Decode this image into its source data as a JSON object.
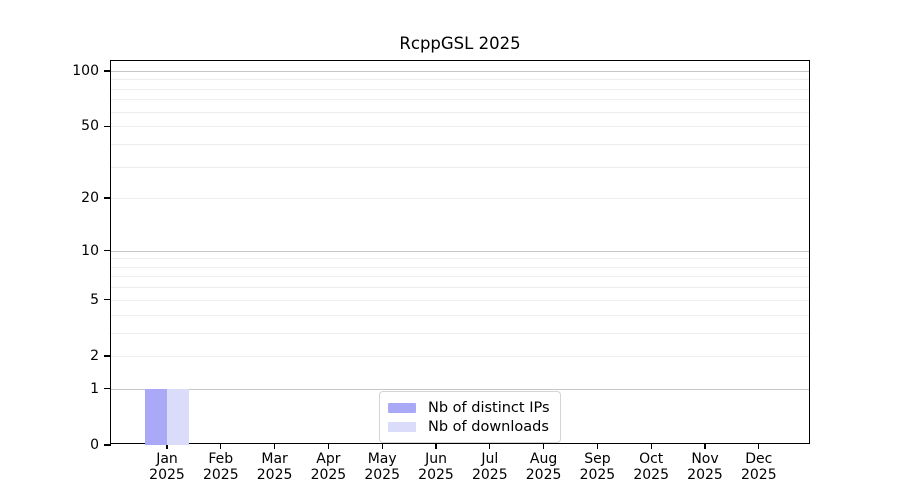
{
  "chart_data": {
    "type": "bar",
    "title": "RcppGSL 2025",
    "categories": [
      "Jan",
      "Feb",
      "Mar",
      "Apr",
      "May",
      "Jun",
      "Jul",
      "Aug",
      "Sep",
      "Oct",
      "Nov",
      "Dec"
    ],
    "x_tick_second_line": "2025",
    "series": [
      {
        "name": "Nb of distinct IPs",
        "color": "#a9a9f7",
        "values": [
          1,
          0,
          0,
          0,
          0,
          0,
          0,
          0,
          0,
          0,
          0,
          0
        ]
      },
      {
        "name": "Nb of downloads",
        "color": "#dbdbfa",
        "values": [
          1,
          0,
          0,
          0,
          0,
          0,
          0,
          0,
          0,
          0,
          0,
          0
        ]
      }
    ],
    "yscale": "log1p",
    "ylim": [
      0,
      113
    ],
    "ytick_labels": [
      0,
      1,
      2,
      5,
      10,
      20,
      50,
      100
    ],
    "grid_major_values": [
      1,
      10,
      100
    ],
    "grid_minor_values": [
      2,
      3,
      4,
      5,
      6,
      7,
      8,
      9,
      20,
      30,
      40,
      50,
      60,
      70,
      80,
      90
    ],
    "grid": "horizontal",
    "legend_position": "bottom-center",
    "colors": {
      "grid_major": "#c6c6c6",
      "grid_minor": "#ededed",
      "axis": "#000000",
      "background": "#ffffff"
    }
  }
}
